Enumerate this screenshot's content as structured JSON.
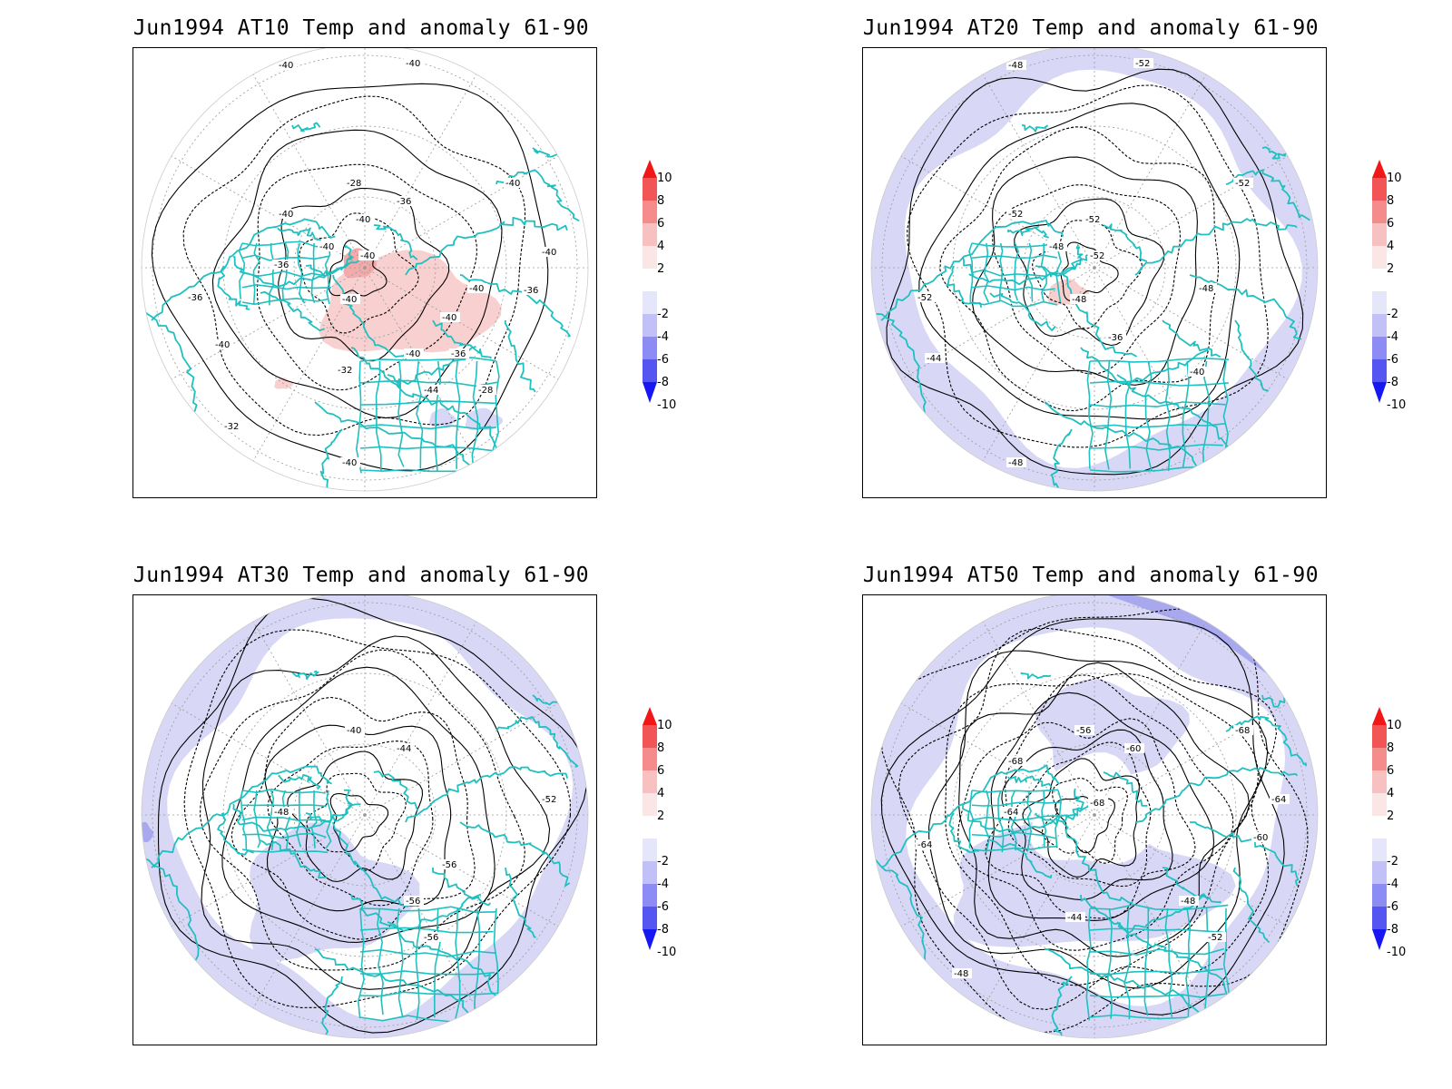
{
  "figure": {
    "panels": [
      {
        "id": "at10",
        "title": "Jun1994 AT10 Temp and anomaly 61-90",
        "contour_labels": [
          "-40",
          "-40",
          "-40",
          "-40",
          "-36",
          "-36",
          "-36",
          "-32",
          "-32",
          "-28",
          "-28",
          "-36",
          "-36",
          "-40",
          "-40",
          "-40",
          "-44",
          "-40",
          "-40",
          "-40",
          "-40",
          "-40",
          "-40",
          "-40"
        ],
        "anomaly_shading": "positive",
        "contour_count": 7
      },
      {
        "id": "at20",
        "title": "Jun1994 AT20 Temp and anomaly 61-90",
        "contour_labels": [
          "-52",
          "-52",
          "-48",
          "-48",
          "-48",
          "-36",
          "-40",
          "-44",
          "-48",
          "-48",
          "-52",
          "-52",
          "-52",
          "-52"
        ],
        "anomaly_shading": "negative",
        "contour_count": 9
      },
      {
        "id": "at30",
        "title": "Jun1994 AT30 Temp and anomaly 61-90",
        "contour_labels": [
          "-40",
          "-44",
          "-48",
          "-52",
          "-56",
          "-56",
          "-56"
        ],
        "anomaly_shading": "negative",
        "contour_count": 11
      },
      {
        "id": "at50",
        "title": "Jun1994 AT50 Temp and anomaly 61-90",
        "contour_labels": [
          "-68",
          "-68",
          "-68",
          "-64",
          "-60",
          "-48",
          "-44",
          "-48",
          "-52",
          "-56",
          "-60",
          "-64",
          "-64"
        ],
        "anomaly_shading": "negative-strong",
        "contour_count": 14
      }
    ],
    "colorbar": {
      "ticks": [
        "10",
        "8",
        "6",
        "4",
        "2",
        "-2",
        "-4",
        "-6",
        "-8",
        "-10"
      ],
      "colors": [
        "#f11717",
        "#f25555",
        "#f48c8c",
        "#f7c1c1",
        "#fbe6e6",
        "#ffffff",
        "#e6e6fb",
        "#c1c1f7",
        "#8c8cf4",
        "#5555f2",
        "#1717f1"
      ]
    },
    "colors": {
      "coastline": "#20c0c0",
      "contour": "#000000",
      "warm_anomaly": "#f8d0d0",
      "cold_anomaly": "#d8d8f6",
      "cold_anomaly_strong": "#a8a8ee"
    }
  }
}
